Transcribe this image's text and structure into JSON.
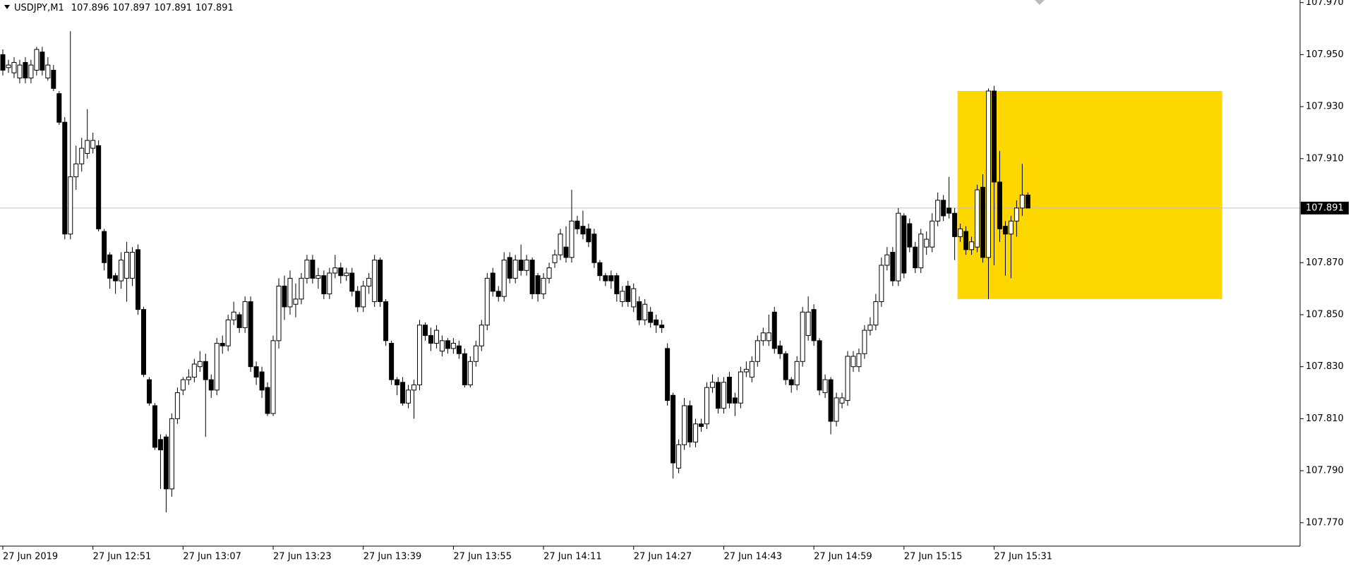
{
  "chart_data": {
    "type": "candlestick",
    "title": "USDJPY,M1",
    "open": [
      107.95,
      107.945,
      107.943,
      107.941,
      107.947,
      107.941,
      107.944,
      107.951,
      107.941,
      107.944,
      107.935,
      107.924,
      107.881,
      107.903,
      107.908,
      107.912,
      107.914,
      107.915,
      107.882,
      107.873,
      107.865,
      107.863,
      107.864,
      107.864,
      107.875,
      107.852,
      107.825,
      107.815,
      107.802,
      107.803,
      107.783,
      107.81,
      107.821,
      107.825,
      107.826,
      107.83,
      107.832,
      107.825,
      107.821,
      107.839,
      107.838,
      107.848,
      107.85,
      107.845,
      107.855,
      107.83,
      107.828,
      107.822,
      107.812,
      107.84,
      107.861,
      107.853,
      107.854,
      107.856,
      107.864,
      107.871,
      107.864,
      107.865,
      107.858,
      107.866,
      107.868,
      107.865,
      107.866,
      107.859,
      107.853,
      107.861,
      107.855,
      107.871,
      107.855,
      107.839,
      107.825,
      107.824,
      107.816,
      107.821,
      107.823,
      107.846,
      107.842,
      107.839,
      107.836,
      107.84,
      107.837,
      107.838,
      107.835,
      107.823,
      107.832,
      107.838,
      107.846,
      107.866,
      107.859,
      107.857,
      107.872,
      107.864,
      107.871,
      107.867,
      107.871,
      107.865,
      107.858,
      107.864,
      107.87,
      107.873,
      107.876,
      107.872,
      107.886,
      107.884,
      107.883,
      107.881,
      107.87,
      107.865,
      107.865,
      107.865,
      107.855,
      107.861,
      107.853,
      107.855,
      107.848,
      107.851,
      107.848,
      107.846,
      107.837,
      107.819,
      107.791,
      107.8,
      107.815,
      107.801,
      107.808,
      107.808,
      107.822,
      107.824,
      107.814,
      107.826,
      107.818,
      107.816,
      107.828,
      107.826,
      107.832,
      107.84,
      107.84,
      107.851,
      107.838,
      107.835,
      107.825,
      107.823,
      107.832,
      107.842,
      107.852,
      107.84,
      107.82,
      107.825,
      107.809,
      107.816,
      107.817,
      107.83,
      107.83,
      107.835,
      107.844,
      107.846,
      107.855,
      107.869,
      107.874,
      107.863,
      107.888,
      107.885,
      107.876,
      107.868,
      107.876,
      107.876,
      107.886,
      107.894,
      107.891,
      107.889,
      107.88,
      107.882,
      107.875,
      107.876,
      107.899,
      107.872,
      107.936,
      107.901,
      107.884,
      107.881,
      107.886,
      107.891,
      107.896
    ],
    "high": [
      107.952,
      107.948,
      107.949,
      107.948,
      107.949,
      107.948,
      107.953,
      107.953,
      107.949,
      107.946,
      107.936,
      107.926,
      107.959,
      107.915,
      107.918,
      107.929,
      107.92,
      107.917,
      107.883,
      107.874,
      107.866,
      107.874,
      107.878,
      107.876,
      107.877,
      107.853,
      107.826,
      107.816,
      107.804,
      107.804,
      107.812,
      107.822,
      107.826,
      107.829,
      107.833,
      107.836,
      107.835,
      107.827,
      107.841,
      107.842,
      107.85,
      107.855,
      107.851,
      107.857,
      107.857,
      107.832,
      107.83,
      107.824,
      107.842,
      107.864,
      107.865,
      107.867,
      107.862,
      107.866,
      107.873,
      107.873,
      107.868,
      107.867,
      107.868,
      107.873,
      107.87,
      107.868,
      107.868,
      107.861,
      107.863,
      107.866,
      107.873,
      107.872,
      107.856,
      107.84,
      107.826,
      107.826,
      107.823,
      107.825,
      107.848,
      107.847,
      107.845,
      107.846,
      107.842,
      107.841,
      107.841,
      107.84,
      107.837,
      107.834,
      107.84,
      107.848,
      107.866,
      107.868,
      107.861,
      107.874,
      107.874,
      107.873,
      107.877,
      107.873,
      107.872,
      107.866,
      107.866,
      107.87,
      107.875,
      107.883,
      107.884,
      107.898,
      107.888,
      107.89,
      107.885,
      107.883,
      107.871,
      107.866,
      107.867,
      107.866,
      107.861,
      107.863,
      107.862,
      107.857,
      107.856,
      107.853,
      107.85,
      107.848,
      107.839,
      107.82,
      107.802,
      107.818,
      107.817,
      107.81,
      107.81,
      107.824,
      107.827,
      107.826,
      107.826,
      107.828,
      107.82,
      107.83,
      107.832,
      107.834,
      107.842,
      107.845,
      107.85,
      107.853,
      107.84,
      107.836,
      107.826,
      107.834,
      107.853,
      107.857,
      107.854,
      107.841,
      107.827,
      107.826,
      107.82,
      107.82,
      107.836,
      107.836,
      107.837,
      107.846,
      107.849,
      107.858,
      107.872,
      107.876,
      107.876,
      107.891,
      107.889,
      107.887,
      107.878,
      107.883,
      107.882,
      107.889,
      107.897,
      107.896,
      107.903,
      107.891,
      107.885,
      107.884,
      107.88,
      107.9,
      107.904,
      107.937,
      107.938,
      107.913,
      107.886,
      107.888,
      107.894,
      107.908,
      107.897
    ],
    "low": [
      107.942,
      107.943,
      107.941,
      107.939,
      107.939,
      107.939,
      107.942,
      107.942,
      107.94,
      107.936,
      107.923,
      107.879,
      107.879,
      107.898,
      107.905,
      107.91,
      107.912,
      107.882,
      107.867,
      107.86,
      107.858,
      107.86,
      107.855,
      107.861,
      107.85,
      107.826,
      107.815,
      107.798,
      107.783,
      107.774,
      107.78,
      107.808,
      107.819,
      107.823,
      107.824,
      107.828,
      107.803,
      107.818,
      107.819,
      107.835,
      107.836,
      107.846,
      107.843,
      107.843,
      107.828,
      107.823,
      107.818,
      107.811,
      107.811,
      107.837,
      107.848,
      107.85,
      107.849,
      107.854,
      107.862,
      107.862,
      107.86,
      107.856,
      107.856,
      107.864,
      107.862,
      107.863,
      107.857,
      107.851,
      107.851,
      107.858,
      107.853,
      107.853,
      107.838,
      107.823,
      107.819,
      107.815,
      107.814,
      107.81,
      107.821,
      107.84,
      107.836,
      107.837,
      107.834,
      107.835,
      107.835,
      107.833,
      107.822,
      107.822,
      107.83,
      107.836,
      107.844,
      107.857,
      107.855,
      107.855,
      107.862,
      107.862,
      107.865,
      107.865,
      107.856,
      107.855,
      107.856,
      107.862,
      107.868,
      107.871,
      107.87,
      107.87,
      107.881,
      107.879,
      107.876,
      107.868,
      107.863,
      107.861,
      107.86,
      107.855,
      107.853,
      107.853,
      107.851,
      107.846,
      107.846,
      107.845,
      107.843,
      107.843,
      107.815,
      107.787,
      107.789,
      107.798,
      107.799,
      107.799,
      107.805,
      107.806,
      107.82,
      107.812,
      107.812,
      107.814,
      107.811,
      107.814,
      107.826,
      107.824,
      107.83,
      107.838,
      107.838,
      107.835,
      107.833,
      107.823,
      107.82,
      107.821,
      107.83,
      107.84,
      107.838,
      107.819,
      107.818,
      107.804,
      107.807,
      107.814,
      107.815,
      107.828,
      107.828,
      107.833,
      107.842,
      107.844,
      107.853,
      107.867,
      107.861,
      107.861,
      107.864,
      107.874,
      107.866,
      107.866,
      107.873,
      107.874,
      107.884,
      107.886,
      107.887,
      107.871,
      107.878,
      107.873,
      107.873,
      107.874,
      107.87,
      107.856,
      107.869,
      107.878,
      107.865,
      107.864,
      107.88,
      107.888,
      107.891
    ],
    "close": [
      107.944,
      107.946,
      107.947,
      107.946,
      107.941,
      107.946,
      107.952,
      107.944,
      107.946,
      107.937,
      107.924,
      107.881,
      107.903,
      107.908,
      107.914,
      107.917,
      107.917,
      107.883,
      107.87,
      107.864,
      107.863,
      107.871,
      107.874,
      107.874,
      107.852,
      107.827,
      107.816,
      107.799,
      107.798,
      107.783,
      107.81,
      107.82,
      107.825,
      107.826,
      107.831,
      107.832,
      107.825,
      107.821,
      107.839,
      107.838,
      107.848,
      107.851,
      107.845,
      107.855,
      107.83,
      107.826,
      107.821,
      107.812,
      107.84,
      107.861,
      107.853,
      107.864,
      107.856,
      107.864,
      107.871,
      107.864,
      107.865,
      107.858,
      107.866,
      107.868,
      107.865,
      107.866,
      107.859,
      107.853,
      107.861,
      107.864,
      107.871,
      107.855,
      107.84,
      107.825,
      107.823,
      107.816,
      107.821,
      107.823,
      107.846,
      107.842,
      107.839,
      107.844,
      107.84,
      107.837,
      107.839,
      107.835,
      107.823,
      107.832,
      107.838,
      107.846,
      107.864,
      107.859,
      107.857,
      107.871,
      107.864,
      107.871,
      107.867,
      107.871,
      107.858,
      107.858,
      107.864,
      107.868,
      107.873,
      107.881,
      107.872,
      107.886,
      107.883,
      107.881,
      107.878,
      107.87,
      107.865,
      107.863,
      107.863,
      107.858,
      107.859,
      107.855,
      107.86,
      107.848,
      107.854,
      107.847,
      107.846,
      107.845,
      107.817,
      107.793,
      107.8,
      107.815,
      107.801,
      107.808,
      107.807,
      107.822,
      107.824,
      107.814,
      107.824,
      107.816,
      107.816,
      107.828,
      107.829,
      107.832,
      107.84,
      107.843,
      107.843,
      107.837,
      107.835,
      107.825,
      107.823,
      107.832,
      107.851,
      107.851,
      107.84,
      107.821,
      107.825,
      107.809,
      107.818,
      107.818,
      107.834,
      107.834,
      107.835,
      107.844,
      107.846,
      107.855,
      107.869,
      107.873,
      107.863,
      107.889,
      107.866,
      107.876,
      107.868,
      107.881,
      107.879,
      107.886,
      107.894,
      107.888,
      107.889,
      107.88,
      107.883,
      107.875,
      107.878,
      107.898,
      107.872,
      107.936,
      107.901,
      107.883,
      107.881,
      107.886,
      107.891,
      107.896,
      107.891
    ],
    "ylim": [
      107.761,
      107.971
    ],
    "yticks": [
      {
        "value": 107.97,
        "label": "107.970"
      },
      {
        "value": 107.95,
        "label": "107.950"
      },
      {
        "value": 107.93,
        "label": "107.930"
      },
      {
        "value": 107.91,
        "label": "107.910"
      },
      {
        "value": 107.87,
        "label": "107.870"
      },
      {
        "value": 107.85,
        "label": "107.850"
      },
      {
        "value": 107.83,
        "label": "107.830"
      },
      {
        "value": 107.81,
        "label": "107.810"
      },
      {
        "value": 107.79,
        "label": "107.790"
      },
      {
        "value": 107.77,
        "label": "107.770"
      }
    ],
    "xticks": [
      {
        "value": 0,
        "label": "27 Jun 2019"
      },
      {
        "value": 16,
        "label": "27 Jun 12:51"
      },
      {
        "value": 32,
        "label": "27 Jun 13:07"
      },
      {
        "value": 48,
        "label": "27 Jun 13:23"
      },
      {
        "value": 64,
        "label": "27 Jun 13:39"
      },
      {
        "value": 80,
        "label": "27 Jun 13:55"
      },
      {
        "value": 96,
        "label": "27 Jun 14:11"
      },
      {
        "value": 112,
        "label": "27 Jun 14:27"
      },
      {
        "value": 128,
        "label": "27 Jun 14:43"
      },
      {
        "value": 144,
        "label": "27 Jun 14:59"
      },
      {
        "value": 160,
        "label": "27 Jun 15:15"
      },
      {
        "value": 176,
        "label": "27 Jun 15:31"
      }
    ],
    "zone": {
      "x": [
        170,
        217
      ],
      "y": [
        107.936,
        107.856
      ],
      "color": "#ffd700"
    },
    "up_color": "#ffffff",
    "down_color": "#000000"
  }
}
